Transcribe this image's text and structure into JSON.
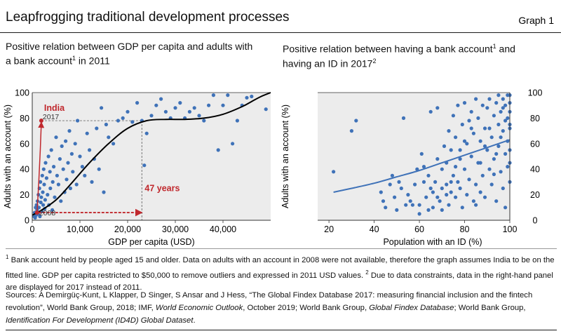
{
  "header": {
    "title": "Leapfrogging traditional development processes",
    "graph_label": "Graph 1"
  },
  "left_panel": {
    "subtitle_line1": "Positive relation between GDP per capita and adults with",
    "subtitle_line2a": "a bank account",
    "subtitle_line2_sup": "1",
    "subtitle_line2b": " in 2011"
  },
  "right_panel": {
    "subtitle_line1a": "Positive relation between having a bank account",
    "subtitle_line1_sup": "1",
    "subtitle_line1b": " and",
    "subtitle_line2a": "having an ID in 2017",
    "subtitle_line2_sup": "2"
  },
  "footnotes": {
    "fn1_mark": "1",
    "fn1_text": "  Bank account held by people aged 15 and older. Data on adults with an account in 2008 were not available, therefore the graph assumes India to be on the fitted line. GDP per capita restricted to $50,000 to remove outliers and expressed in 2011 USD values.",
    "fn2_mark": "2",
    "fn2_text": "  Due to data constraints, data in the right-hand panel are displayed for 2017 instead of 2011."
  },
  "sources": {
    "prefix": "Sources: A Demirgüç-Kunt, L Klapper, D Singer, S Ansar and J Hess, “The Global Findex Database 2017: measuring financial inclusion and the fintech revolution”, World Bank Group, 2018; IMF, ",
    "weo": "World Economic Outlook",
    "mid1": ", October 2019; World Bank Group, ",
    "findex": "Global Findex Database",
    "mid2": "; World Bank Group, ",
    "id4d": "Identification For Development (ID4D) Global Dataset",
    "end": "."
  },
  "colors": {
    "dot": "#3f72b8",
    "fit_left": "#000000",
    "fit_right": "#3f72b8",
    "india": "#c0282d",
    "panel_bg": "#ececec",
    "guide": "#8a8a8a"
  },
  "chart_data": [
    {
      "type": "scatter",
      "title": "Positive relation between GDP per capita and adults with a bank account in 2011",
      "xlabel": "GDP per capita (USD)",
      "ylabel": "Adults with an account (%)",
      "xlim": [
        0,
        50000
      ],
      "ylim": [
        0,
        100
      ],
      "xticks": [
        0,
        10000,
        20000,
        30000,
        40000
      ],
      "xtick_labels": [
        "0",
        "10,000",
        "20,000",
        "30,000",
        "40,000"
      ],
      "yticks": [
        0,
        20,
        40,
        60,
        80,
        100
      ],
      "ytick_labels": [
        "0",
        "20",
        "40",
        "60",
        "80",
        "100"
      ],
      "fit_line": {
        "x": [
          0,
          2000,
          5000,
          8000,
          12000,
          16000,
          20000,
          24000,
          28000,
          32000,
          36000,
          40000,
          44000,
          46000,
          48000,
          50000
        ],
        "y": [
          4,
          8,
          16,
          28,
          45,
          60,
          72,
          78,
          79,
          79,
          80,
          83,
          89,
          93,
          97,
          100
        ]
      },
      "points": [
        [
          400,
          3
        ],
        [
          500,
          6
        ],
        [
          600,
          2
        ],
        [
          700,
          10
        ],
        [
          800,
          4
        ],
        [
          900,
          12
        ],
        [
          1000,
          8
        ],
        [
          1100,
          15
        ],
        [
          1200,
          5
        ],
        [
          1300,
          20
        ],
        [
          1400,
          10
        ],
        [
          1500,
          25
        ],
        [
          1600,
          3
        ],
        [
          1700,
          30
        ],
        [
          1800,
          14
        ],
        [
          1900,
          18
        ],
        [
          2000,
          7
        ],
        [
          2100,
          35
        ],
        [
          2200,
          22
        ],
        [
          2300,
          12
        ],
        [
          2400,
          40
        ],
        [
          2500,
          28
        ],
        [
          2600,
          9
        ],
        [
          2700,
          16
        ],
        [
          2800,
          45
        ],
        [
          3000,
          33
        ],
        [
          3200,
          20
        ],
        [
          3400,
          50
        ],
        [
          3500,
          12
        ],
        [
          3700,
          38
        ],
        [
          3800,
          25
        ],
        [
          4000,
          55
        ],
        [
          4200,
          8
        ],
        [
          4300,
          30
        ],
        [
          4500,
          42
        ],
        [
          4700,
          18
        ],
        [
          5000,
          65
        ],
        [
          5200,
          35
        ],
        [
          5500,
          28
        ],
        [
          5800,
          48
        ],
        [
          6000,
          15
        ],
        [
          6200,
          58
        ],
        [
          6500,
          40
        ],
        [
          6800,
          22
        ],
        [
          7000,
          62
        ],
        [
          7200,
          32
        ],
        [
          7500,
          45
        ],
        [
          7800,
          70
        ],
        [
          8000,
          25
        ],
        [
          8300,
          52
        ],
        [
          8500,
          38
        ],
        [
          9000,
          60
        ],
        [
          9300,
          28
        ],
        [
          9500,
          78
        ],
        [
          10000,
          50
        ],
        [
          10500,
          42
        ],
        [
          11000,
          35
        ],
        [
          11500,
          68
        ],
        [
          12000,
          55
        ],
        [
          12500,
          30
        ],
        [
          13000,
          48
        ],
        [
          13500,
          72
        ],
        [
          14000,
          40
        ],
        [
          14500,
          88
        ],
        [
          15000,
          22
        ],
        [
          15500,
          75
        ],
        [
          16000,
          65
        ],
        [
          17000,
          60
        ],
        [
          18000,
          78
        ],
        [
          19000,
          80
        ],
        [
          20000,
          85
        ],
        [
          21000,
          77
        ],
        [
          22000,
          92
        ],
        [
          23000,
          78
        ],
        [
          23500,
          43
        ],
        [
          24000,
          68
        ],
        [
          25000,
          82
        ],
        [
          26000,
          90
        ],
        [
          27000,
          95
        ],
        [
          28000,
          85
        ],
        [
          29000,
          80
        ],
        [
          30000,
          88
        ],
        [
          31000,
          92
        ],
        [
          32000,
          80
        ],
        [
          33000,
          85
        ],
        [
          34000,
          88
        ],
        [
          35000,
          82
        ],
        [
          36000,
          78
        ],
        [
          37000,
          90
        ],
        [
          38000,
          98
        ],
        [
          39000,
          55
        ],
        [
          40000,
          90
        ],
        [
          41000,
          98
        ],
        [
          42000,
          60
        ],
        [
          43000,
          78
        ],
        [
          44000,
          90
        ],
        [
          45000,
          96
        ],
        [
          46000,
          97
        ],
        [
          49000,
          87
        ]
      ],
      "india": {
        "label": "India",
        "x_2008": 1000,
        "y_2008": 6,
        "label_2008": "2008",
        "x_2017": 1900,
        "y_2017": 78,
        "label_2017": "2017",
        "gdp_reach_x": 23000,
        "years_label": "47 years"
      }
    },
    {
      "type": "scatter",
      "title": "Positive relation between having a bank account and having an ID in 2017",
      "xlabel": "Population with an ID (%)",
      "ylabel": "Adults with an account (%)",
      "xlim": [
        15,
        100
      ],
      "ylim": [
        0,
        100
      ],
      "xticks": [
        20,
        40,
        60,
        80,
        100
      ],
      "xtick_labels": [
        "20",
        "40",
        "60",
        "80",
        "100"
      ],
      "yticks": [
        0,
        20,
        40,
        60,
        80,
        100
      ],
      "ytick_labels": [
        "0",
        "20",
        "40",
        "60",
        "80",
        "100"
      ],
      "fit_line": {
        "x": [
          22,
          30,
          40,
          50,
          60,
          70,
          80,
          90,
          100
        ],
        "y": [
          22,
          25,
          29,
          34,
          39,
          45,
          51,
          57,
          63
        ]
      },
      "points": [
        [
          22,
          38
        ],
        [
          30,
          70
        ],
        [
          32,
          78
        ],
        [
          43,
          22
        ],
        [
          44,
          15
        ],
        [
          45,
          10
        ],
        [
          47,
          28
        ],
        [
          48,
          35
        ],
        [
          49,
          18
        ],
        [
          50,
          8
        ],
        [
          51,
          30
        ],
        [
          52,
          25
        ],
        [
          53,
          80
        ],
        [
          54,
          12
        ],
        [
          55,
          20
        ],
        [
          56,
          15
        ],
        [
          58,
          28
        ],
        [
          59,
          40
        ],
        [
          60,
          12
        ],
        [
          61,
          52
        ],
        [
          62,
          42
        ],
        [
          63,
          18
        ],
        [
          64,
          35
        ],
        [
          65,
          25
        ],
        [
          65,
          85
        ],
        [
          66,
          10
        ],
        [
          67,
          30
        ],
        [
          68,
          48
        ],
        [
          68,
          88
        ],
        [
          69,
          15
        ],
        [
          70,
          40
        ],
        [
          70,
          8
        ],
        [
          71,
          58
        ],
        [
          72,
          28
        ],
        [
          72,
          45
        ],
        [
          73,
          70
        ],
        [
          73,
          12
        ],
        [
          74,
          22
        ],
        [
          74,
          55
        ],
        [
          75,
          82
        ],
        [
          75,
          35
        ],
        [
          76,
          18
        ],
        [
          76,
          65
        ],
        [
          77,
          30
        ],
        [
          77,
          90
        ],
        [
          78,
          48
        ],
        [
          78,
          25
        ],
        [
          79,
          75
        ],
        [
          79,
          10
        ],
        [
          80,
          40
        ],
        [
          80,
          92
        ],
        [
          81,
          20
        ],
        [
          81,
          60
        ],
        [
          82,
          78
        ],
        [
          82,
          32
        ],
        [
          83,
          50
        ],
        [
          83,
          85
        ],
        [
          84,
          15
        ],
        [
          84,
          68
        ],
        [
          85,
          28
        ],
        [
          85,
          95
        ],
        [
          86,
          45
        ],
        [
          86,
          80
        ],
        [
          87,
          22
        ],
        [
          87,
          62
        ],
        [
          88,
          90
        ],
        [
          88,
          35
        ],
        [
          89,
          72
        ],
        [
          89,
          18
        ],
        [
          90,
          55
        ],
        [
          90,
          88
        ],
        [
          91,
          40
        ],
        [
          91,
          95
        ],
        [
          92,
          65
        ],
        [
          92,
          28
        ],
        [
          93,
          82
        ],
        [
          93,
          48
        ],
        [
          94,
          92
        ],
        [
          94,
          15
        ],
        [
          95,
          75
        ],
        [
          95,
          58
        ],
        [
          95,
          98
        ],
        [
          96,
          38
        ],
        [
          96,
          85
        ],
        [
          97,
          70
        ],
        [
          97,
          25
        ],
        [
          97,
          95
        ],
        [
          98,
          52
        ],
        [
          98,
          90
        ],
        [
          98,
          10
        ],
        [
          99,
          80
        ],
        [
          99,
          62
        ],
        [
          99,
          98
        ],
        [
          99,
          42
        ],
        [
          100,
          92
        ],
        [
          100,
          72
        ],
        [
          100,
          55
        ],
        [
          100,
          30
        ],
        [
          100,
          98
        ],
        [
          100,
          85
        ],
        [
          100,
          45
        ],
        [
          100,
          75
        ],
        [
          98,
          78
        ],
        [
          97,
          88
        ],
        [
          96,
          65
        ],
        [
          94,
          52
        ],
        [
          93,
          36
        ],
        [
          91,
          72
        ],
        [
          89,
          58
        ],
        [
          87,
          45
        ],
        [
          85,
          12
        ],
        [
          83,
          72
        ],
        [
          80,
          62
        ],
        [
          78,
          55
        ],
        [
          76,
          42
        ],
        [
          74,
          30
        ],
        [
          72,
          20
        ],
        [
          70,
          25
        ],
        [
          68,
          18
        ],
        [
          66,
          22
        ],
        [
          64,
          8
        ],
        [
          62,
          30
        ],
        [
          60,
          5
        ],
        [
          57,
          12
        ]
      ]
    }
  ]
}
